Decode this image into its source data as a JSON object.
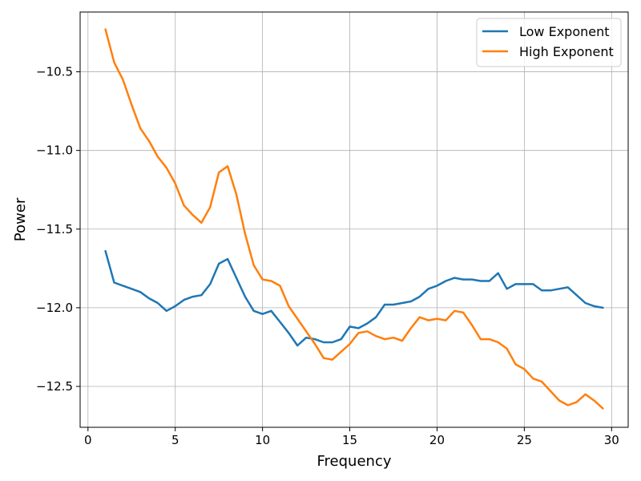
{
  "chart_data": {
    "type": "line",
    "title": "",
    "xlabel": "Frequency",
    "ylabel": "Power",
    "xlim": [
      -0.45,
      30.95
    ],
    "ylim": [
      -12.76,
      -10.12
    ],
    "xticks": [
      0,
      5,
      10,
      15,
      20,
      25,
      30
    ],
    "xtick_labels": [
      "0",
      "5",
      "10",
      "15",
      "20",
      "25",
      "30"
    ],
    "yticks": [
      -10.5,
      -11.0,
      -11.5,
      -12.0,
      -12.5
    ],
    "ytick_labels": [
      "−10.5",
      "−11.0",
      "−11.5",
      "−12.0",
      "−12.5"
    ],
    "grid": true,
    "legend_position": "top-right",
    "x": [
      1.0,
      1.5,
      2.0,
      2.5,
      3.0,
      3.5,
      4.0,
      4.5,
      5.0,
      5.5,
      6.0,
      6.5,
      7.0,
      7.5,
      8.0,
      8.5,
      9.0,
      9.5,
      10.0,
      10.5,
      11.0,
      11.5,
      12.0,
      12.5,
      13.0,
      13.5,
      14.0,
      14.5,
      15.0,
      15.5,
      16.0,
      16.5,
      17.0,
      17.5,
      18.0,
      18.5,
      19.0,
      19.5,
      20.0,
      20.5,
      21.0,
      21.5,
      22.0,
      22.5,
      23.0,
      23.5,
      24.0,
      24.5,
      25.0,
      25.5,
      26.0,
      26.5,
      27.0,
      27.5,
      28.0,
      28.5,
      29.0,
      29.5
    ],
    "series": [
      {
        "name": "Low Exponent",
        "color": "#1f77b4",
        "values": [
          -11.64,
          -11.84,
          -11.86,
          -11.88,
          -11.9,
          -11.94,
          -11.97,
          -12.02,
          -11.99,
          -11.95,
          -11.93,
          -11.92,
          -11.85,
          -11.72,
          -11.69,
          -11.81,
          -11.93,
          -12.02,
          -12.04,
          -12.02,
          -12.09,
          -12.16,
          -12.24,
          -12.19,
          -12.2,
          -12.22,
          -12.22,
          -12.2,
          -12.12,
          -12.13,
          -12.1,
          -12.06,
          -11.98,
          -11.98,
          -11.97,
          -11.96,
          -11.93,
          -11.88,
          -11.86,
          -11.83,
          -11.81,
          -11.82,
          -11.82,
          -11.83,
          -11.83,
          -11.78,
          -11.88,
          -11.85,
          -11.85,
          -11.85,
          -11.89,
          -11.89,
          -11.88,
          -11.87,
          -11.92,
          -11.97,
          -11.99,
          -12.0
        ]
      },
      {
        "name": "High Exponent",
        "color": "#ff7f0e",
        "values": [
          -10.23,
          -10.44,
          -10.55,
          -10.71,
          -10.86,
          -10.94,
          -11.04,
          -11.11,
          -11.21,
          -11.35,
          -11.41,
          -11.46,
          -11.36,
          -11.14,
          -11.1,
          -11.28,
          -11.53,
          -11.73,
          -11.82,
          -11.83,
          -11.86,
          -11.99,
          -12.07,
          -12.15,
          -12.23,
          -12.32,
          -12.33,
          -12.28,
          -12.23,
          -12.16,
          -12.15,
          -12.18,
          -12.2,
          -12.19,
          -12.21,
          -12.13,
          -12.06,
          -12.08,
          -12.07,
          -12.08,
          -12.02,
          -12.03,
          -12.11,
          -12.2,
          -12.2,
          -12.22,
          -12.26,
          -12.36,
          -12.39,
          -12.45,
          -12.47,
          -12.53,
          -12.59,
          -12.62,
          -12.6,
          -12.55,
          -12.59,
          -12.64
        ]
      }
    ]
  }
}
